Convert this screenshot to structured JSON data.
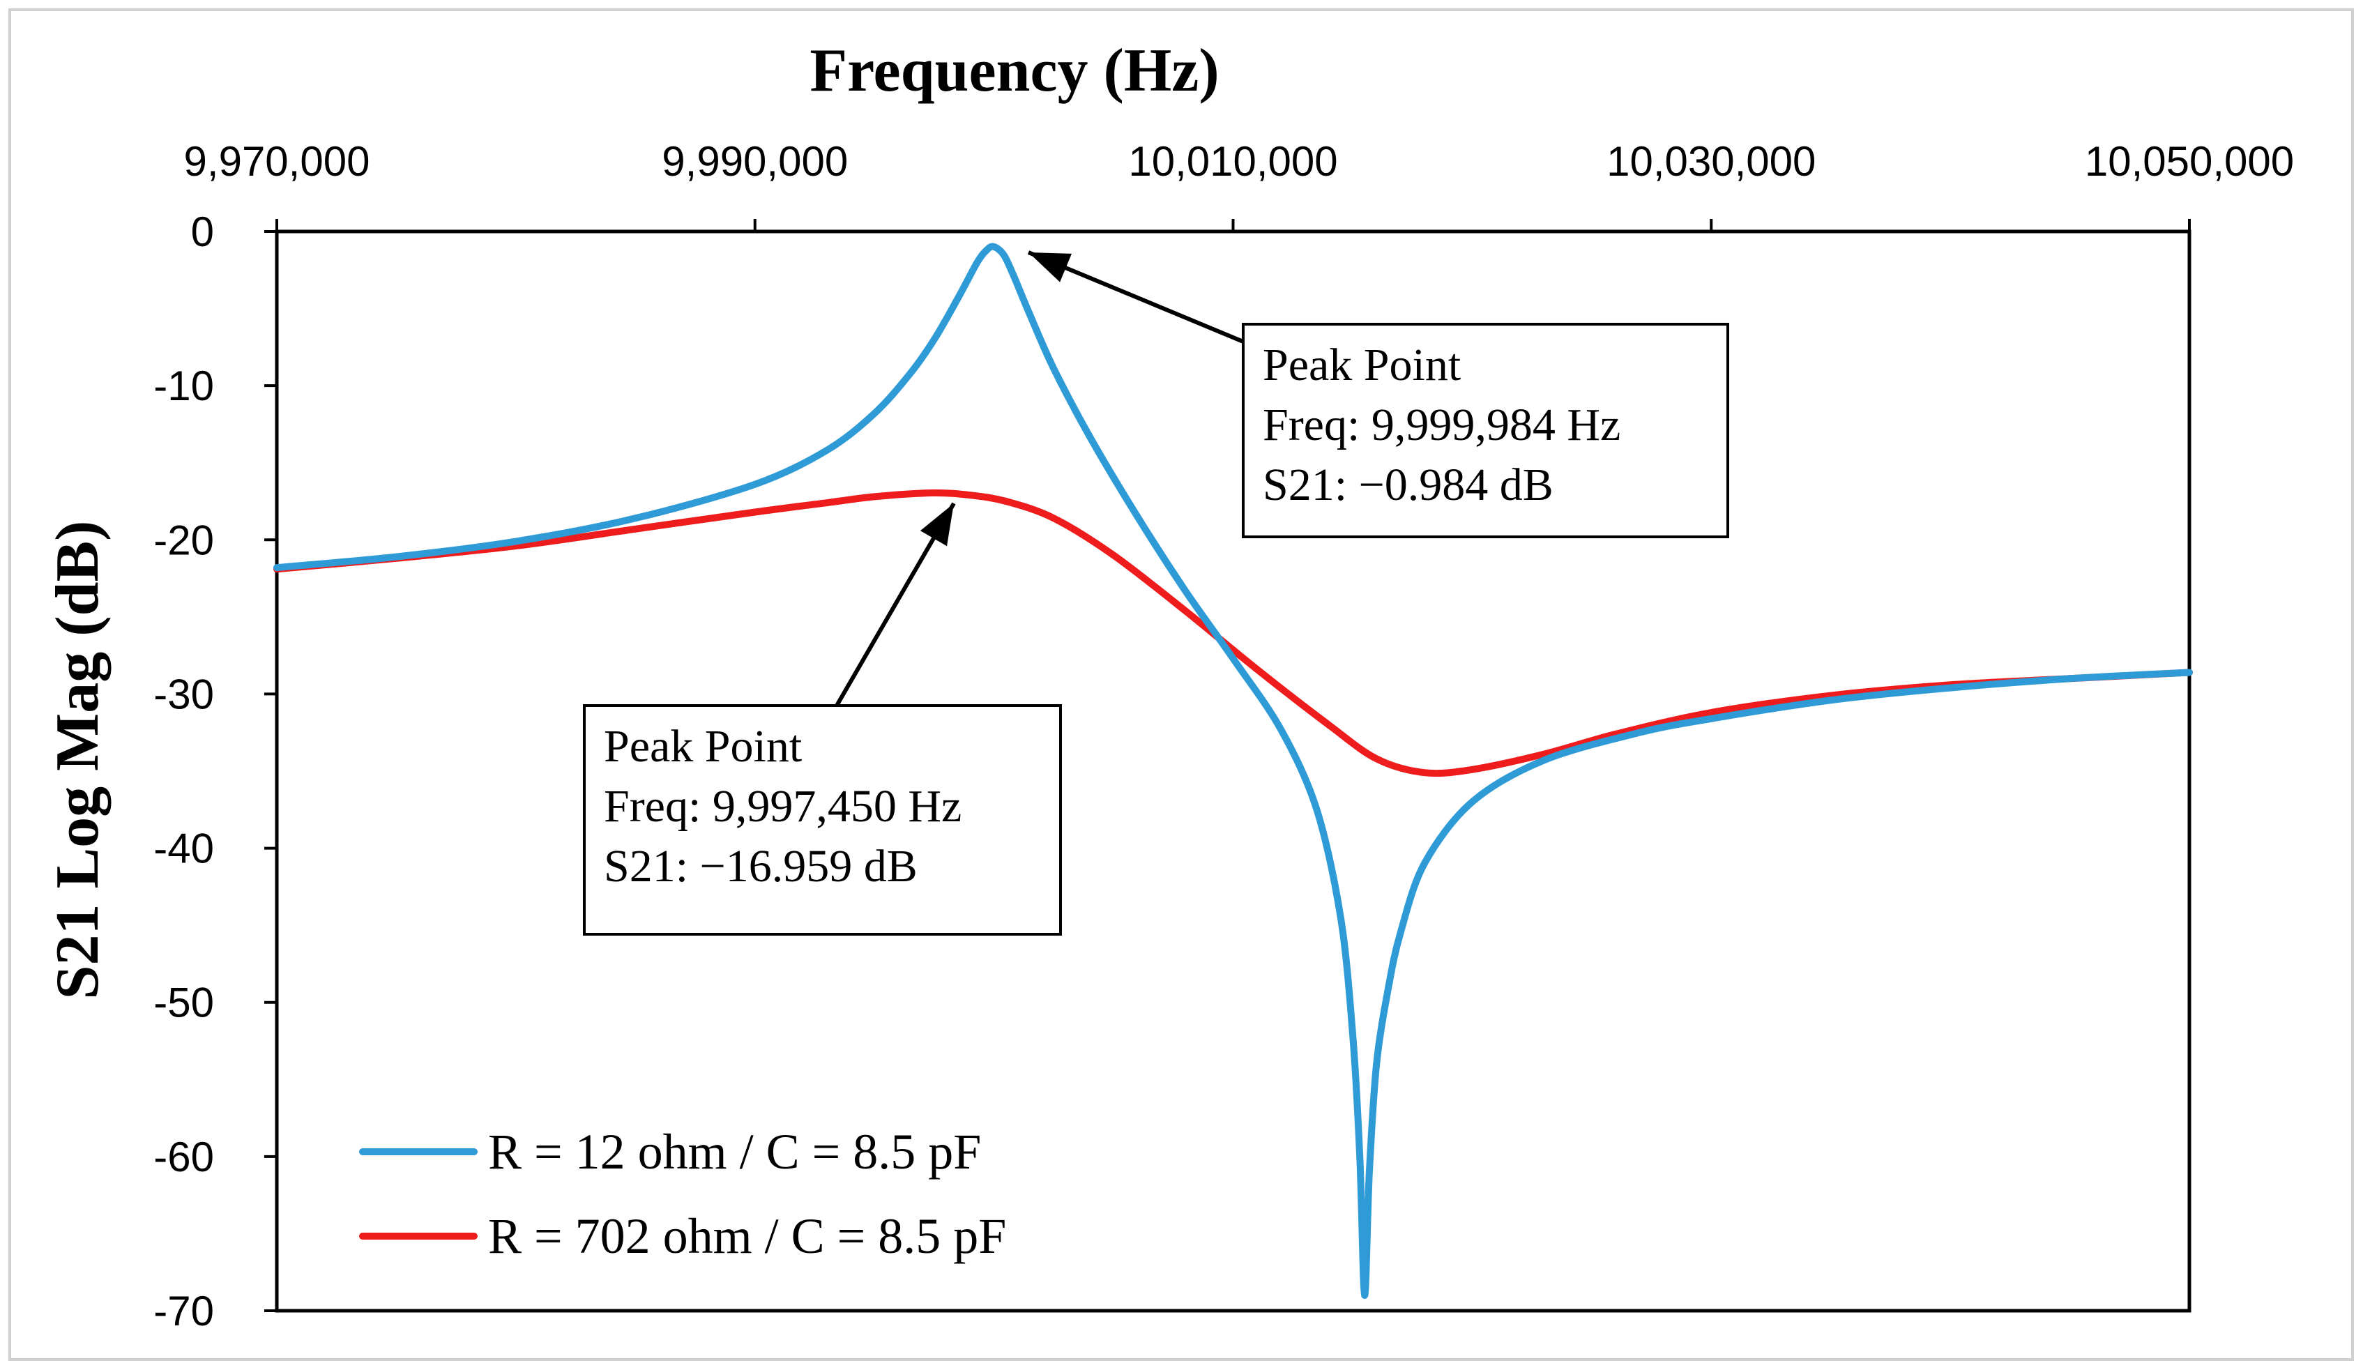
{
  "chart_data": {
    "type": "line",
    "title": "",
    "xlabel": "Frequency (Hz)",
    "ylabel": "S21 Log Mag (dB)",
    "xlim": [
      9970000,
      10050000
    ],
    "ylim": [
      -70,
      0
    ],
    "x_ticks": [
      9970000,
      9990000,
      10010000,
      10030000,
      10050000
    ],
    "x_tick_labels": [
      "9,970,000",
      "9,990,000",
      "10,010,000",
      "10,030,000",
      "10,050,000"
    ],
    "y_ticks": [
      0,
      -10,
      -20,
      -30,
      -40,
      -50,
      -60,
      -70
    ],
    "y_tick_labels": [
      "0",
      "-10",
      "-20",
      "-30",
      "-40",
      "-50",
      "-60",
      "-70"
    ],
    "x_axis_position": "top",
    "grid": false,
    "legend_position": "bottom-left",
    "series": [
      {
        "name": "R = 12 ohm / C = 8.5 pF",
        "color": "#2E9BD6",
        "points": [
          [
            9970000,
            -21.8
          ],
          [
            9975000,
            -21.1
          ],
          [
            9980000,
            -20.1
          ],
          [
            9985000,
            -18.6
          ],
          [
            9990000,
            -16.4
          ],
          [
            9993000,
            -14.2
          ],
          [
            9995000,
            -11.8
          ],
          [
            9996500,
            -9.2
          ],
          [
            9997500,
            -7.0
          ],
          [
            9998500,
            -4.3
          ],
          [
            9999300,
            -2.0
          ],
          [
            9999700,
            -1.2
          ],
          [
            9999984,
            -0.984
          ],
          [
            10000400,
            -1.5
          ],
          [
            10000800,
            -2.8
          ],
          [
            10001500,
            -5.4
          ],
          [
            10002500,
            -8.9
          ],
          [
            10004000,
            -13.3
          ],
          [
            10006000,
            -18.5
          ],
          [
            10008000,
            -23.3
          ],
          [
            10010000,
            -27.7
          ],
          [
            10012000,
            -32.3
          ],
          [
            10013500,
            -37.5
          ],
          [
            10014500,
            -44.5
          ],
          [
            10015000,
            -52.0
          ],
          [
            10015300,
            -60.0
          ],
          [
            10015500,
            -69.0
          ],
          [
            10015700,
            -61.0
          ],
          [
            10016000,
            -54.0
          ],
          [
            10016500,
            -49.0
          ],
          [
            10017000,
            -45.5
          ],
          [
            10018000,
            -41.0
          ],
          [
            10020000,
            -37.0
          ],
          [
            10023000,
            -34.3
          ],
          [
            10027000,
            -32.5
          ],
          [
            10030000,
            -31.6
          ],
          [
            10035000,
            -30.4
          ],
          [
            10040000,
            -29.6
          ],
          [
            10045000,
            -29.0
          ],
          [
            10050000,
            -28.6
          ]
        ]
      },
      {
        "name": "R = 702 ohm / C = 8.5 pF",
        "color": "#EE1C1C",
        "points": [
          [
            9970000,
            -21.9
          ],
          [
            9975000,
            -21.2
          ],
          [
            9980000,
            -20.4
          ],
          [
            9985000,
            -19.3
          ],
          [
            9990000,
            -18.2
          ],
          [
            9993000,
            -17.6
          ],
          [
            9995000,
            -17.2
          ],
          [
            9997450,
            -16.959
          ],
          [
            9999000,
            -17.1
          ],
          [
            10000500,
            -17.5
          ],
          [
            10002500,
            -18.6
          ],
          [
            10005000,
            -21.0
          ],
          [
            10008000,
            -24.6
          ],
          [
            10011000,
            -28.4
          ],
          [
            10014000,
            -32.0
          ],
          [
            10016000,
            -34.2
          ],
          [
            10018000,
            -35.1
          ],
          [
            10020000,
            -34.9
          ],
          [
            10023000,
            -33.9
          ],
          [
            10026000,
            -32.6
          ],
          [
            10030000,
            -31.2
          ],
          [
            10035000,
            -30.1
          ],
          [
            10040000,
            -29.4
          ],
          [
            10045000,
            -29.0
          ],
          [
            10050000,
            -28.6
          ]
        ]
      }
    ],
    "annotations": [
      {
        "lines": [
          "Peak Point",
          "Freq: 9,999,984 Hz",
          "S21: −0.984 dB"
        ],
        "target": [
          9999984,
          -0.984
        ],
        "series": "R = 12 ohm / C = 8.5 pF"
      },
      {
        "lines": [
          "Peak Point",
          "Freq: 9,997,450 Hz",
          "S21: −16.959 dB"
        ],
        "target": [
          9997450,
          -16.959
        ],
        "series": "R = 702 ohm / C = 8.5 pF"
      }
    ]
  }
}
